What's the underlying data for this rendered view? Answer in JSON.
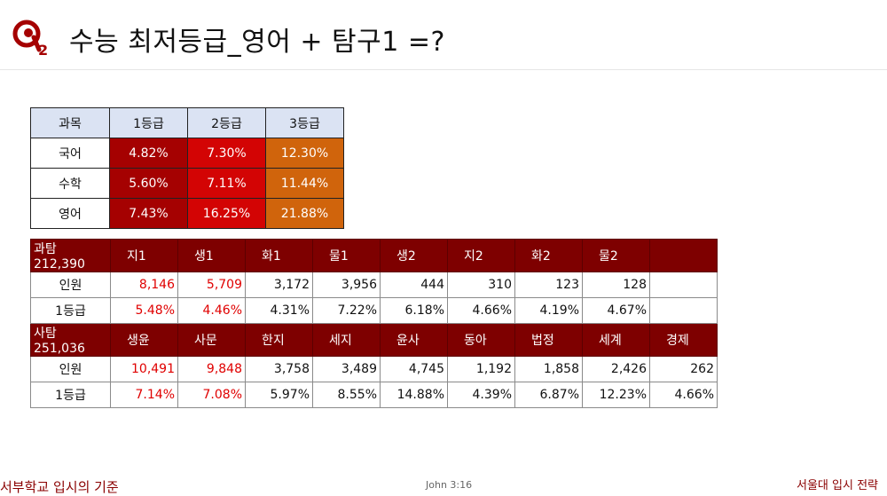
{
  "title": "수능 최저등급_영어 + 탐구1 =?",
  "grade_table": {
    "headers": [
      "과목",
      "1등급",
      "2등급",
      "3등급"
    ],
    "rows": [
      {
        "subject": "국어",
        "values": [
          "4.82%",
          "7.30%",
          "12.30%"
        ]
      },
      {
        "subject": "수학",
        "values": [
          "5.60%",
          "7.11%",
          "11.44%"
        ]
      },
      {
        "subject": "영어",
        "values": [
          "7.43%",
          "16.25%",
          "21.88%"
        ]
      }
    ]
  },
  "science": {
    "header": [
      "과탐 212,390",
      "지1",
      "생1",
      "화1",
      "물1",
      "생2",
      "지2",
      "화2",
      "물2",
      ""
    ],
    "count_label": "인원",
    "counts": [
      "8,146",
      "5,709",
      "3,172",
      "3,956",
      "444",
      "310",
      "123",
      "128",
      ""
    ],
    "grade1_label": "1등급",
    "grade1": [
      "5.48%",
      "4.46%",
      "4.31%",
      "7.22%",
      "6.18%",
      "4.66%",
      "4.19%",
      "4.67%",
      ""
    ]
  },
  "social": {
    "header": [
      "사탐 251,036",
      "생윤",
      "사문",
      "한지",
      "세지",
      "윤사",
      "동아",
      "법정",
      "세계",
      "경제"
    ],
    "count_label": "인원",
    "counts": [
      "10,491",
      "9,848",
      "3,758",
      "3,489",
      "4,745",
      "1,192",
      "1,858",
      "2,426",
      "262"
    ],
    "grade1_label": "1등급",
    "grade1": [
      "7.14%",
      "7.08%",
      "5.97%",
      "8.55%",
      "14.88%",
      "4.39%",
      "6.87%",
      "12.23%",
      "4.66%"
    ]
  },
  "footer": {
    "left": "서부학교 입시의 기준",
    "middle": "John 3:16",
    "right": "서울대 입시 전략"
  },
  "colors": {
    "grade1": "#a50101",
    "grade2": "#d30404",
    "grade3": "#d0640c",
    "dark_header": "#7e0000",
    "highlight_text": "#e00000"
  }
}
